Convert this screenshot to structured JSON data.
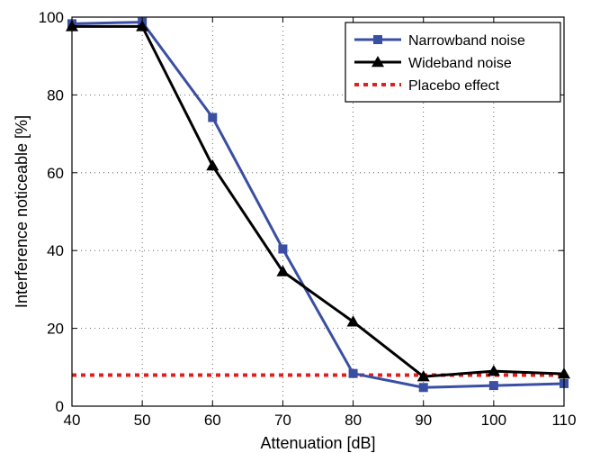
{
  "chart_data": {
    "type": "line",
    "title": "",
    "xlabel": "Attenuation [dB]",
    "ylabel": "Interference noticeable [%]",
    "xlim": [
      40,
      110
    ],
    "ylim": [
      0,
      100
    ],
    "xticks": [
      40,
      50,
      60,
      70,
      80,
      90,
      100,
      110
    ],
    "yticks": [
      0,
      20,
      40,
      60,
      80,
      100
    ],
    "grid": true,
    "legend_position": "top-right",
    "x": [
      40,
      50,
      60,
      70,
      80,
      90,
      100,
      110
    ],
    "series": [
      {
        "name": "Narrowband noise",
        "values": [
          98.3,
          98.7,
          74.2,
          40.4,
          8.4,
          4.8,
          5.3,
          5.8
        ],
        "color": "#3a4fa3",
        "marker": "square",
        "line_style": "solid"
      },
      {
        "name": "Wideband noise",
        "values": [
          97.6,
          97.6,
          61.8,
          34.6,
          21.7,
          7.6,
          9.0,
          8.3
        ],
        "color": "#000000",
        "marker": "triangle",
        "line_style": "solid"
      },
      {
        "name": "Placebo effect",
        "values": [
          8,
          8,
          8,
          8,
          8,
          8,
          8,
          8
        ],
        "color": "#e02020",
        "marker": "none",
        "line_style": "dotted"
      }
    ]
  }
}
